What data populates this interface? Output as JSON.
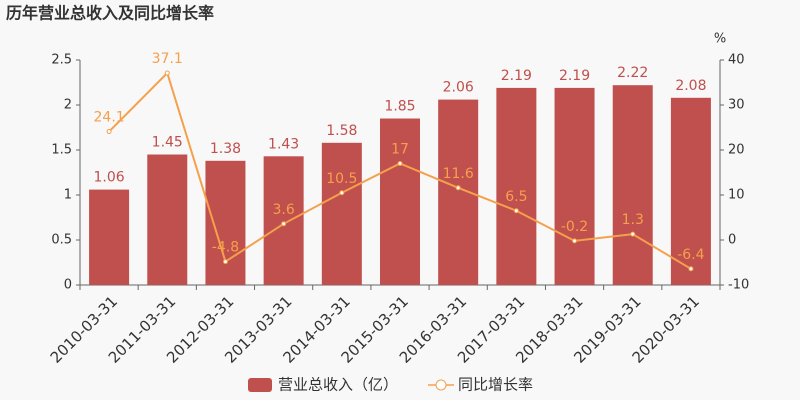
{
  "chart_data": {
    "type": "bar",
    "title": "历年营业总收入及同比增长率",
    "categories": [
      "2010-03-31",
      "2011-03-31",
      "2012-03-31",
      "2013-03-31",
      "2014-03-31",
      "2015-03-31",
      "2016-03-31",
      "2017-03-31",
      "2018-03-31",
      "2019-03-31",
      "2020-03-31"
    ],
    "series": [
      {
        "name": "营业总收入（亿）",
        "type": "bar",
        "color": "#c0504d",
        "values": [
          1.06,
          1.45,
          1.38,
          1.43,
          1.58,
          1.85,
          2.06,
          2.19,
          2.19,
          2.22,
          2.08
        ]
      },
      {
        "name": "同比增长率",
        "type": "line",
        "axis": "y2",
        "color": "#f5a04c",
        "values": [
          24.1,
          37.1,
          -4.8,
          3.6,
          10.5,
          17,
          11.6,
          6.5,
          -0.2,
          1.3,
          -6.4
        ]
      }
    ],
    "ylim": [
      0,
      2.5
    ],
    "yticks": [
      0,
      0.5,
      1,
      1.5,
      2,
      2.5
    ],
    "y2lim": [
      -10,
      40
    ],
    "y2ticks": [
      -10,
      0,
      10,
      20,
      30,
      40
    ],
    "y2_label": "%",
    "grid": false
  }
}
